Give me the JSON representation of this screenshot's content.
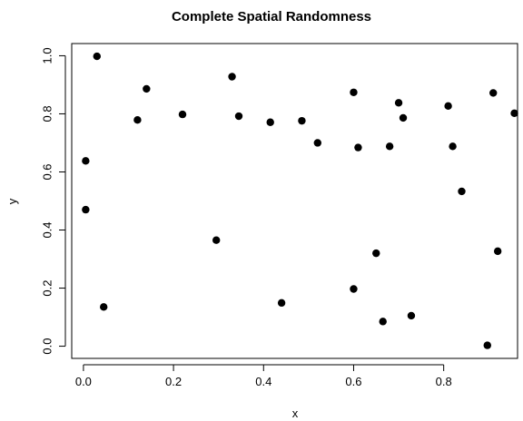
{
  "chart_data": {
    "type": "scatter",
    "title": "Complete Spatial Randomness",
    "xlabel": "x",
    "ylabel": "y",
    "xlim": [
      -0.026,
      0.964
    ],
    "ylim": [
      -0.042,
      1.042
    ],
    "x_ticks": [
      0.0,
      0.2,
      0.4,
      0.6,
      0.8
    ],
    "x_tick_labels": [
      "0.0",
      "0.2",
      "0.4",
      "0.6",
      "0.8"
    ],
    "y_ticks": [
      0.0,
      0.2,
      0.4,
      0.6,
      0.8,
      1.0
    ],
    "y_tick_labels": [
      "0.0",
      "0.2",
      "0.4",
      "0.6",
      "0.8",
      "1.0"
    ],
    "grid": false,
    "frame": true,
    "series": [
      {
        "x": [
          0.03,
          0.14,
          0.33,
          0.6,
          0.7,
          0.91,
          0.12,
          0.22,
          0.345,
          0.415,
          0.485,
          0.71,
          0.81,
          0.957,
          0.52,
          0.61,
          0.68,
          0.82,
          0.005,
          0.005,
          0.84,
          0.295,
          0.65,
          0.92,
          0.6,
          0.44,
          0.045,
          0.728,
          0.665,
          0.897
        ],
        "y": [
          0.998,
          0.886,
          0.928,
          0.874,
          0.838,
          0.872,
          0.779,
          0.798,
          0.792,
          0.771,
          0.776,
          0.786,
          0.827,
          0.802,
          0.7,
          0.684,
          0.688,
          0.688,
          0.638,
          0.47,
          0.533,
          0.365,
          0.32,
          0.327,
          0.197,
          0.149,
          0.135,
          0.105,
          0.085,
          0.003
        ]
      }
    ]
  }
}
